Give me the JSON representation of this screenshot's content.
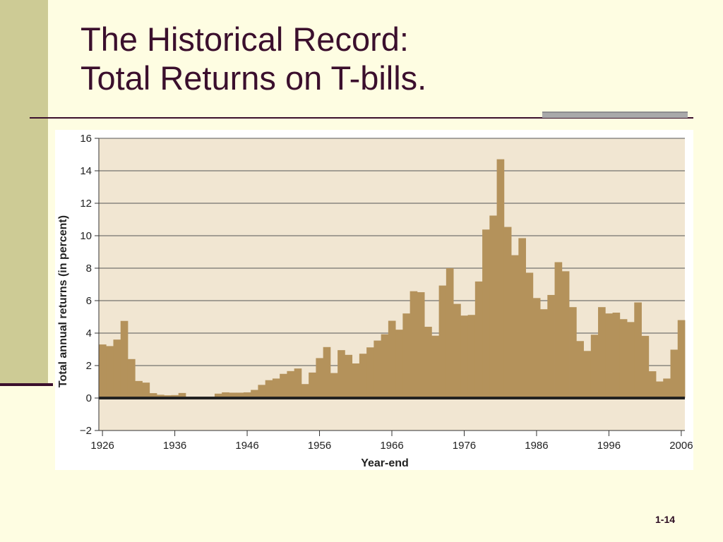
{
  "slide": {
    "title_line1": "The Historical Record:",
    "title_line2": "Total Returns on T-bills.",
    "number": "1-14"
  },
  "colors": {
    "background": "#fefde2",
    "band": "#cdcb95",
    "title": "#3b0f2d",
    "plot_background": "#f1e6d2",
    "bar": "#b4925b",
    "gridline": "#555555",
    "zero_line": "#222222"
  },
  "chart_data": {
    "type": "area",
    "title": "",
    "xlabel": "Year-end",
    "ylabel": "Total annual returns (in percent)",
    "xlim": [
      1926,
      2007
    ],
    "ylim": [
      -2,
      16
    ],
    "yticks": [
      -2,
      0,
      2,
      4,
      6,
      8,
      10,
      12,
      14,
      16
    ],
    "ytick_labels": [
      "−2",
      "0",
      "2",
      "4",
      "6",
      "8",
      "10",
      "12",
      "14",
      "16"
    ],
    "xticks": [
      1926,
      1936,
      1946,
      1956,
      1966,
      1976,
      1986,
      1996,
      2006
    ],
    "xtick_labels": [
      "1926",
      "1936",
      "1946",
      "1956",
      "1966",
      "1976",
      "1986",
      "1996",
      "2006"
    ],
    "grid": true,
    "series": [
      {
        "x": [
          1926,
          1927,
          1928,
          1929,
          1930,
          1931,
          1932,
          1933,
          1934,
          1935,
          1936,
          1937,
          1938,
          1939,
          1940,
          1941,
          1942,
          1943,
          1944,
          1945,
          1946,
          1947,
          1948,
          1949,
          1950,
          1951,
          1952,
          1953,
          1954,
          1955,
          1956,
          1957,
          1958,
          1959,
          1960,
          1961,
          1962,
          1963,
          1964,
          1965,
          1966,
          1967,
          1968,
          1969,
          1970,
          1971,
          1972,
          1973,
          1974,
          1975,
          1976,
          1977,
          1978,
          1979,
          1980,
          1981,
          1982,
          1983,
          1984,
          1985,
          1986,
          1987,
          1988,
          1989,
          1990,
          1991,
          1992,
          1993,
          1994,
          1995,
          1996,
          1997,
          1998,
          1999,
          2000,
          2001,
          2002,
          2003,
          2004,
          2005,
          2006
        ],
        "values": [
          3.3,
          3.2,
          3.6,
          4.75,
          2.4,
          1.05,
          0.95,
          0.3,
          0.2,
          0.17,
          0.18,
          0.31,
          0.02,
          0.02,
          0.0,
          0.06,
          0.27,
          0.35,
          0.33,
          0.33,
          0.35,
          0.5,
          0.81,
          1.1,
          1.2,
          1.49,
          1.66,
          1.82,
          0.86,
          1.57,
          2.46,
          3.14,
          1.54,
          2.95,
          2.66,
          2.13,
          2.73,
          3.12,
          3.54,
          3.93,
          4.76,
          4.21,
          5.21,
          6.58,
          6.52,
          4.39,
          3.84,
          6.93,
          8.0,
          5.8,
          5.08,
          5.12,
          7.18,
          10.38,
          11.24,
          14.71,
          10.54,
          8.8,
          9.85,
          7.72,
          6.16,
          5.47,
          6.35,
          8.37,
          7.81,
          5.6,
          3.51,
          2.9,
          3.9,
          5.6,
          5.21,
          5.26,
          4.86,
          4.68,
          5.89,
          3.83,
          1.65,
          1.02,
          1.2,
          2.98,
          4.8
        ]
      }
    ]
  }
}
